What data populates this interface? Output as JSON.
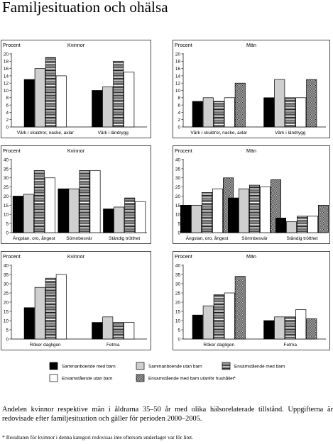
{
  "title": "Familjesituation och ohälsa",
  "caption": "Andelen kvinnor respektive män i åldrarna 35–50 år med olika hälsorelaterade tillstånd. Uppgifterna är redovisade efter familjesituation och gäller för perioden 2000–2005.",
  "footnote": "* Resultaten för kvinnor i denna kategori redovisas inte eftersom underlaget var för litet.",
  "legend": [
    {
      "name": "Sammanboende med barn",
      "pattern": "solid-black"
    },
    {
      "name": "Sammanboende utan barn",
      "pattern": "solid-gray"
    },
    {
      "name": "Ensamstående med barn",
      "pattern": "horizontal-stripes"
    },
    {
      "name": "Ensamstående utan barn",
      "pattern": "solid-white"
    },
    {
      "name": "Ensamstående med barn utanför hushållet*",
      "pattern": "checkered"
    }
  ],
  "chart_data": [
    {
      "type": "bar",
      "ylabel": "Procent",
      "title": "Kvinnor",
      "ylim": [
        0,
        20
      ],
      "ytick_step": 2,
      "categories": [
        "Värk i skuldror, nacke, axlar",
        "Värk i ländrygg"
      ],
      "series": [
        {
          "name": "Sammanboende med barn",
          "values": [
            13,
            10
          ]
        },
        {
          "name": "Sammanboende utan barn",
          "values": [
            16,
            11
          ]
        },
        {
          "name": "Ensamstående med barn",
          "values": [
            19,
            18
          ]
        },
        {
          "name": "Ensamstående utan barn",
          "values": [
            14,
            15
          ]
        }
      ]
    },
    {
      "type": "bar",
      "ylabel": "Procent",
      "title": "Män",
      "ylim": [
        0,
        20
      ],
      "ytick_step": 2,
      "categories": [
        "Värk i skuldror, nacke, axlar",
        "Värk i ländrygg"
      ],
      "series": [
        {
          "name": "Sammanboende med barn",
          "values": [
            7,
            8
          ]
        },
        {
          "name": "Sammanboende utan barn",
          "values": [
            8,
            13
          ]
        },
        {
          "name": "Ensamstående med barn",
          "values": [
            7,
            8
          ]
        },
        {
          "name": "Ensamstående utan barn",
          "values": [
            8,
            8
          ]
        },
        {
          "name": "Ensamstående med barn utanför hushållet*",
          "values": [
            12,
            13
          ]
        }
      ]
    },
    {
      "type": "bar",
      "ylabel": "Procent",
      "title": "Kvinnor",
      "ylim": [
        0,
        40
      ],
      "ytick_step": 5,
      "categories": [
        "Ängslan, oro, ångest",
        "Sömnbesvär",
        "Ständig trötthet"
      ],
      "series": [
        {
          "name": "Sammanboende med barn",
          "values": [
            20,
            24,
            13
          ]
        },
        {
          "name": "Sammanboende utan barn",
          "values": [
            21,
            24,
            14
          ]
        },
        {
          "name": "Ensamstående med barn",
          "values": [
            34,
            34,
            19
          ]
        },
        {
          "name": "Ensamstående utan barn",
          "values": [
            30,
            34,
            17
          ]
        }
      ]
    },
    {
      "type": "bar",
      "ylabel": "Procent",
      "title": "Män",
      "ylim": [
        0,
        40
      ],
      "ytick_step": 5,
      "categories": [
        "Ängslan, oro, ångest",
        "Sömnbesvär",
        "Ständig trötthet"
      ],
      "series": [
        {
          "name": "Sammanboende med barn",
          "values": [
            15,
            19,
            8
          ]
        },
        {
          "name": "Sammanboende utan barn",
          "values": [
            15,
            24,
            6
          ]
        },
        {
          "name": "Ensamstående med barn",
          "values": [
            22,
            26,
            9
          ]
        },
        {
          "name": "Ensamstående utan barn",
          "values": [
            24,
            25,
            9
          ]
        },
        {
          "name": "Ensamstående med barn utanför hushållet*",
          "values": [
            30,
            29,
            15
          ]
        }
      ]
    },
    {
      "type": "bar",
      "ylabel": "Procent",
      "title": "Kvinnor",
      "ylim": [
        0,
        40
      ],
      "ytick_step": 5,
      "categories": [
        "Röker dagligen",
        "Fetma"
      ],
      "series": [
        {
          "name": "Sammanboende med barn",
          "values": [
            17,
            9
          ]
        },
        {
          "name": "Sammanboende utan barn",
          "values": [
            28,
            12
          ]
        },
        {
          "name": "Ensamstående med barn",
          "values": [
            33,
            9
          ]
        },
        {
          "name": "Ensamstående utan barn",
          "values": [
            35,
            9
          ]
        }
      ]
    },
    {
      "type": "bar",
      "ylabel": "Procent",
      "title": "Män",
      "ylim": [
        0,
        40
      ],
      "ytick_step": 5,
      "categories": [
        "Röker dagligen",
        "Fetma"
      ],
      "series": [
        {
          "name": "Sammanboende med barn",
          "values": [
            13,
            10
          ]
        },
        {
          "name": "Sammanboende utan barn",
          "values": [
            18,
            12
          ]
        },
        {
          "name": "Ensamstående med barn",
          "values": [
            24,
            12
          ]
        },
        {
          "name": "Ensamstående utan barn",
          "values": [
            25,
            16
          ]
        },
        {
          "name": "Ensamstående med barn utanför hushållet*",
          "values": [
            34,
            11
          ]
        }
      ]
    }
  ]
}
